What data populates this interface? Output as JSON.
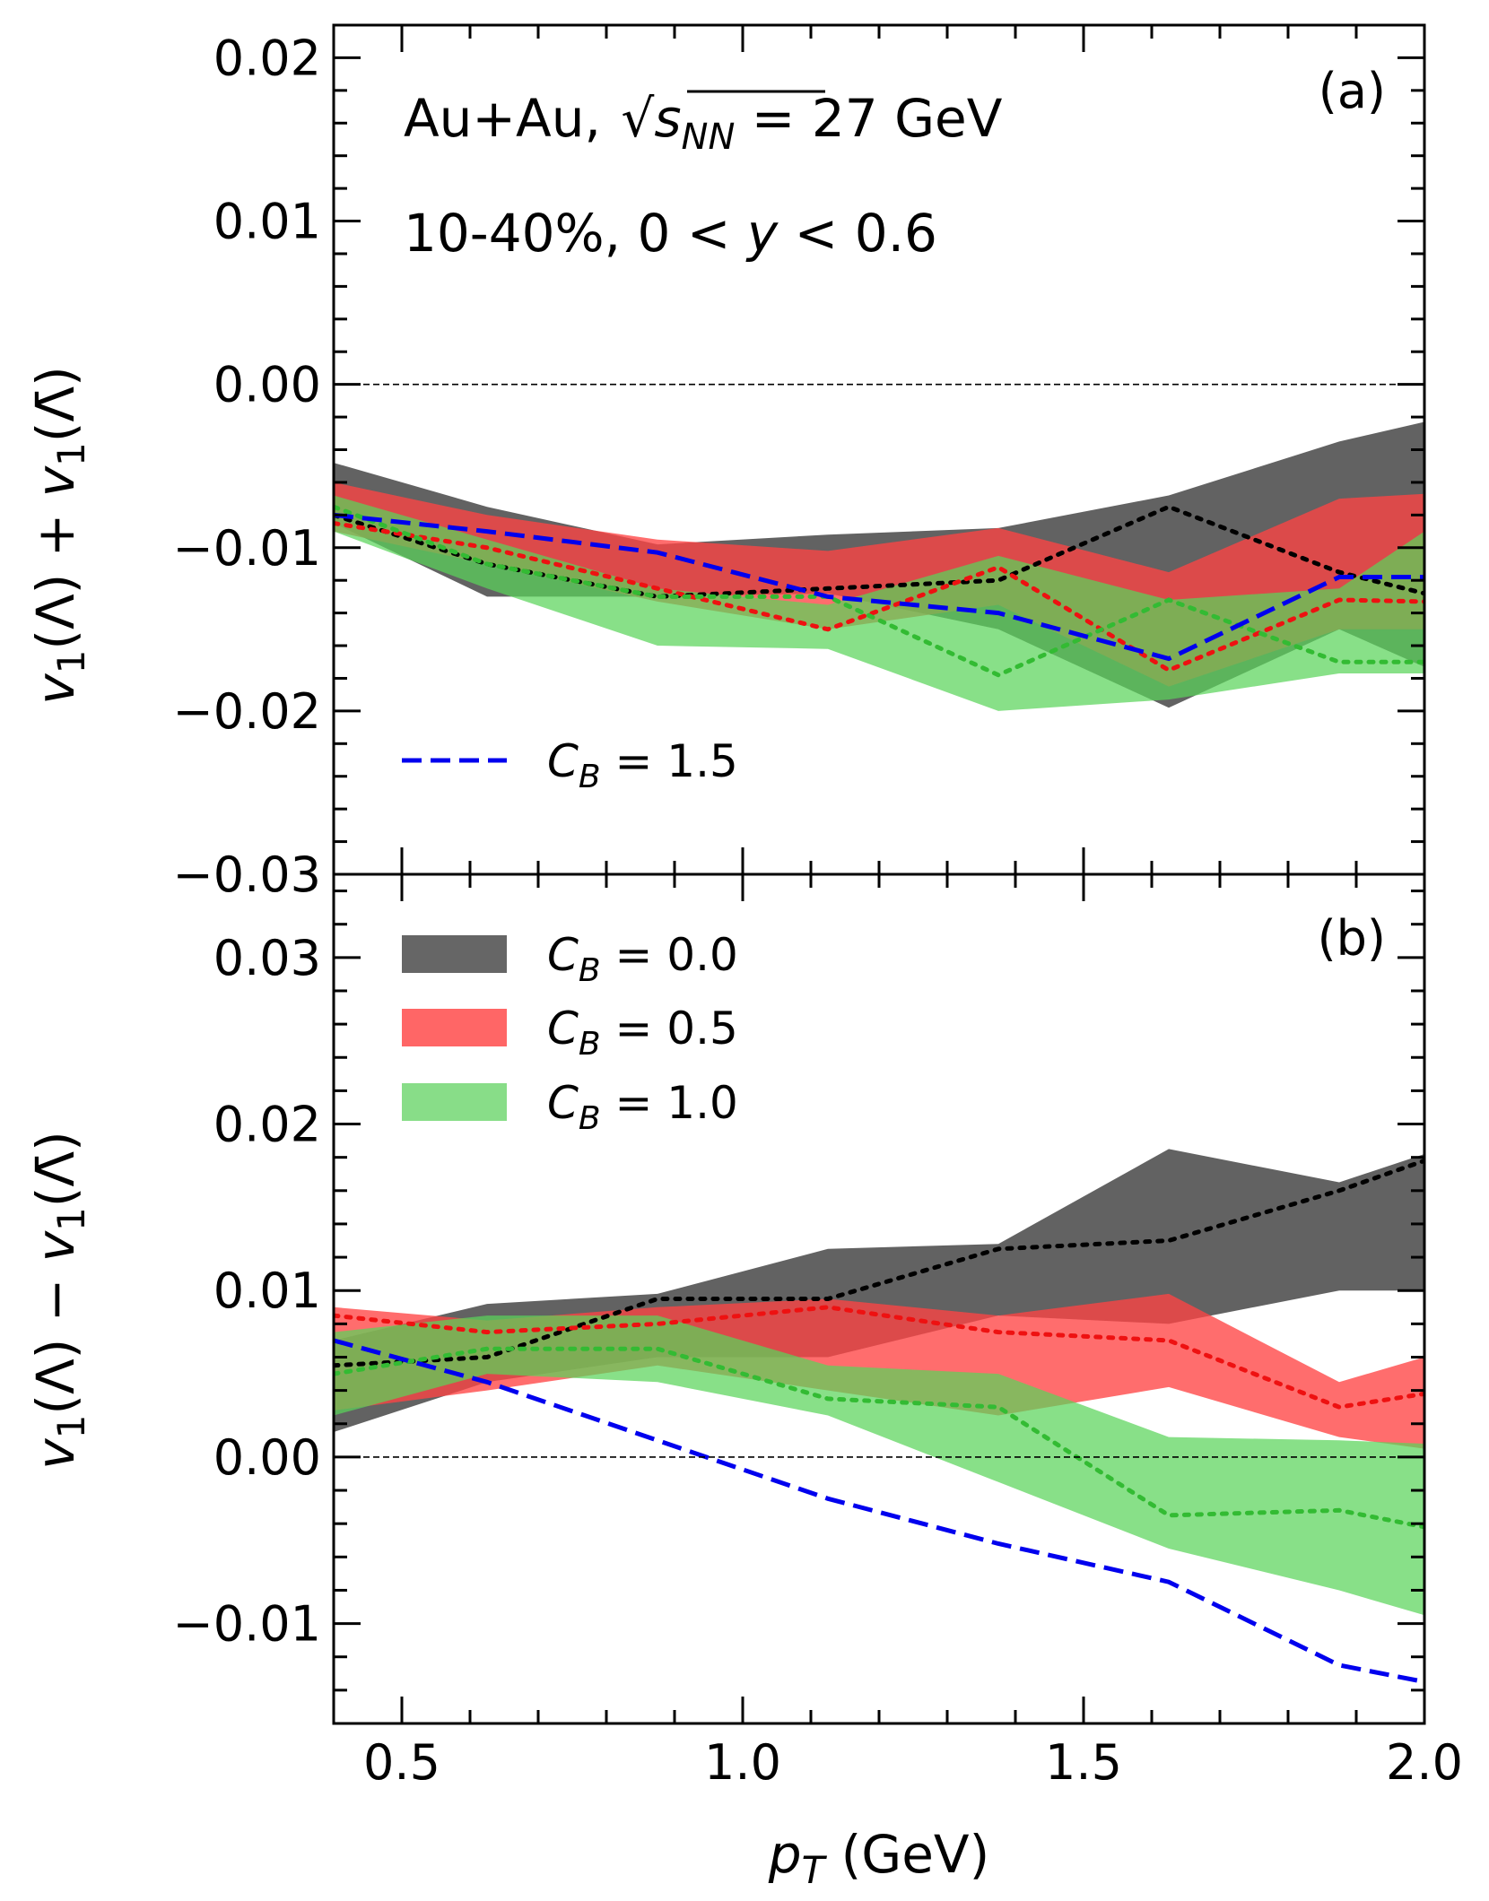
{
  "chart_data": [
    {
      "panel": "(a)",
      "type": "area",
      "xlabel": "p_T (GeV)",
      "ylabel": "v_1(Λ) + v_1(Λ̄)",
      "xlim": [
        0.4,
        2.0
      ],
      "ylim": [
        -0.03,
        0.022
      ],
      "x_ticks": [
        0.5,
        1.0,
        1.5,
        2.0
      ],
      "y_ticks": [
        -0.03,
        -0.02,
        -0.01,
        0.0,
        0.01,
        0.02
      ],
      "y_tick_labels": [
        "−0.03",
        "−0.02",
        "−0.01",
        "0.00",
        "0.01",
        "0.02"
      ],
      "annotations": [
        "Au+Au, √s_NN = 27 GeV",
        "10-40%, 0 < y < 0.6"
      ],
      "zero_line": true,
      "legend": {
        "placement": "lower-left",
        "entries": [
          "C_B = 1.5"
        ]
      },
      "x": [
        0.4,
        0.625,
        0.875,
        1.125,
        1.375,
        1.625,
        1.875,
        2.0
      ],
      "series": [
        {
          "name": "C_B = 0.0",
          "color": "#555555",
          "band_upper": [
            -0.0048,
            -0.0075,
            -0.0098,
            -0.0092,
            -0.0088,
            -0.0068,
            -0.0035,
            -0.0023
          ],
          "band_lower": [
            -0.0085,
            -0.013,
            -0.013,
            -0.0128,
            -0.015,
            -0.0198,
            -0.015,
            -0.0173
          ],
          "line": [
            -0.008,
            -0.011,
            -0.013,
            -0.0125,
            -0.012,
            -0.0075,
            -0.0115,
            -0.0128
          ]
        },
        {
          "name": "C_B = 0.5",
          "color": "#ff3333",
          "band_upper": [
            -0.006,
            -0.008,
            -0.0095,
            -0.0102,
            -0.0088,
            -0.0115,
            -0.007,
            -0.0067
          ],
          "band_lower": [
            -0.009,
            -0.011,
            -0.0133,
            -0.015,
            -0.0135,
            -0.0185,
            -0.015,
            -0.015
          ],
          "line": [
            -0.0085,
            -0.01,
            -0.0125,
            -0.015,
            -0.0112,
            -0.0175,
            -0.0132,
            -0.0133
          ]
        },
        {
          "name": "C_B = 1.0",
          "color": "#44cc44",
          "band_upper": [
            -0.0068,
            -0.0095,
            -0.0125,
            -0.0135,
            -0.0105,
            -0.0132,
            -0.0125,
            -0.009
          ],
          "band_lower": [
            -0.009,
            -0.0125,
            -0.016,
            -0.0162,
            -0.02,
            -0.0193,
            -0.0177,
            -0.0177
          ],
          "line": [
            -0.0075,
            -0.011,
            -0.013,
            -0.013,
            -0.0178,
            -0.0132,
            -0.017,
            -0.017
          ]
        },
        {
          "name": "C_B = 1.5",
          "color": "#0000ee",
          "line": [
            -0.008,
            -0.009,
            -0.0103,
            -0.013,
            -0.014,
            -0.0168,
            -0.0118,
            -0.0118
          ]
        }
      ]
    },
    {
      "panel": "(b)",
      "type": "area",
      "xlabel": "p_T (GeV)",
      "ylabel": "v_1(Λ) − v_1(Λ̄)",
      "xlim": [
        0.4,
        2.0
      ],
      "ylim": [
        -0.016,
        0.035
      ],
      "x_ticks": [
        0.5,
        1.0,
        1.5,
        2.0
      ],
      "x_tick_labels": [
        "0.5",
        "1.0",
        "1.5",
        "2.0"
      ],
      "y_ticks": [
        -0.01,
        0.0,
        0.01,
        0.02,
        0.03
      ],
      "y_tick_labels": [
        "−0.01",
        "0.00",
        "0.01",
        "0.02",
        "0.03"
      ],
      "zero_line": true,
      "legend": {
        "placement": "top-left",
        "entries": [
          "C_B = 0.0",
          "C_B = 0.5",
          "C_B = 1.0"
        ]
      },
      "x": [
        0.4,
        0.625,
        0.875,
        1.125,
        1.375,
        1.625,
        1.875,
        2.0
      ],
      "series": [
        {
          "name": "C_B = 0.0",
          "color": "#555555",
          "band_upper": [
            0.007,
            0.0092,
            0.0098,
            0.0125,
            0.0128,
            0.0185,
            0.0165,
            0.0182
          ],
          "band_lower": [
            0.0015,
            0.0045,
            0.006,
            0.006,
            0.0085,
            0.008,
            0.01,
            0.01
          ],
          "line": [
            0.0055,
            0.006,
            0.0095,
            0.0095,
            0.0125,
            0.013,
            0.016,
            0.0178
          ]
        },
        {
          "name": "C_B = 0.5",
          "color": "#ff3333",
          "band_upper": [
            0.009,
            0.0082,
            0.009,
            0.0095,
            0.0085,
            0.0098,
            0.0045,
            0.006
          ],
          "band_lower": [
            0.0028,
            0.004,
            0.0055,
            0.004,
            0.0025,
            0.0042,
            0.0012,
            0.0005
          ],
          "line": [
            0.0085,
            0.0075,
            0.008,
            0.009,
            0.0075,
            0.007,
            0.003,
            0.0038
          ]
        },
        {
          "name": "C_B = 1.0",
          "color": "#44cc44",
          "band_upper": [
            0.0075,
            0.0085,
            0.0085,
            0.0055,
            0.005,
            0.0012,
            0.001,
            0.0008
          ],
          "band_lower": [
            0.0025,
            0.005,
            0.0045,
            0.0025,
            -0.0015,
            -0.0055,
            -0.008,
            -0.0095
          ],
          "line": [
            0.005,
            0.0065,
            0.0065,
            0.0035,
            0.003,
            -0.0035,
            -0.0032,
            -0.0042
          ]
        },
        {
          "name": "C_B = 1.5",
          "color": "#0000ee",
          "line": [
            0.007,
            0.0045,
            0.001,
            -0.0025,
            -0.0052,
            -0.0075,
            -0.0125,
            -0.0135
          ]
        }
      ]
    }
  ],
  "labels": {
    "top_annotation_1a": "Au+Au, ",
    "top_annotation_1b": "s",
    "top_annotation_1c": "NN",
    "top_annotation_1d": " =  27 GeV",
    "top_annotation_2a": "10-40%, 0 < ",
    "top_annotation_2b": "y",
    "top_annotation_2c": " < 0.6",
    "panel_a": "(a)",
    "panel_b": "(b)",
    "xlabel_p": "p",
    "xlabel_sub": "T",
    "xlabel_unit": " (GeV)",
    "legend_a_cb": "C",
    "legend_a_sub": "B",
    "legend_a_val": " = 1.5",
    "legend_b": [
      {
        "cb": "C",
        "sub": "B",
        "val": " = 0.0"
      },
      {
        "cb": "C",
        "sub": "B",
        "val": " = 0.5"
      },
      {
        "cb": "C",
        "sub": "B",
        "val": " = 1.0"
      }
    ],
    "ylabel_a_v": "v",
    "ylabel_a_1": "1",
    "ylabel_a_lam": "(Λ) + ",
    "ylabel_a_v2": "v",
    "ylabel_a_12": "1",
    "ylabel_a_lam2": "(Λ̄)",
    "ylabel_b_lam": "(Λ) − "
  }
}
